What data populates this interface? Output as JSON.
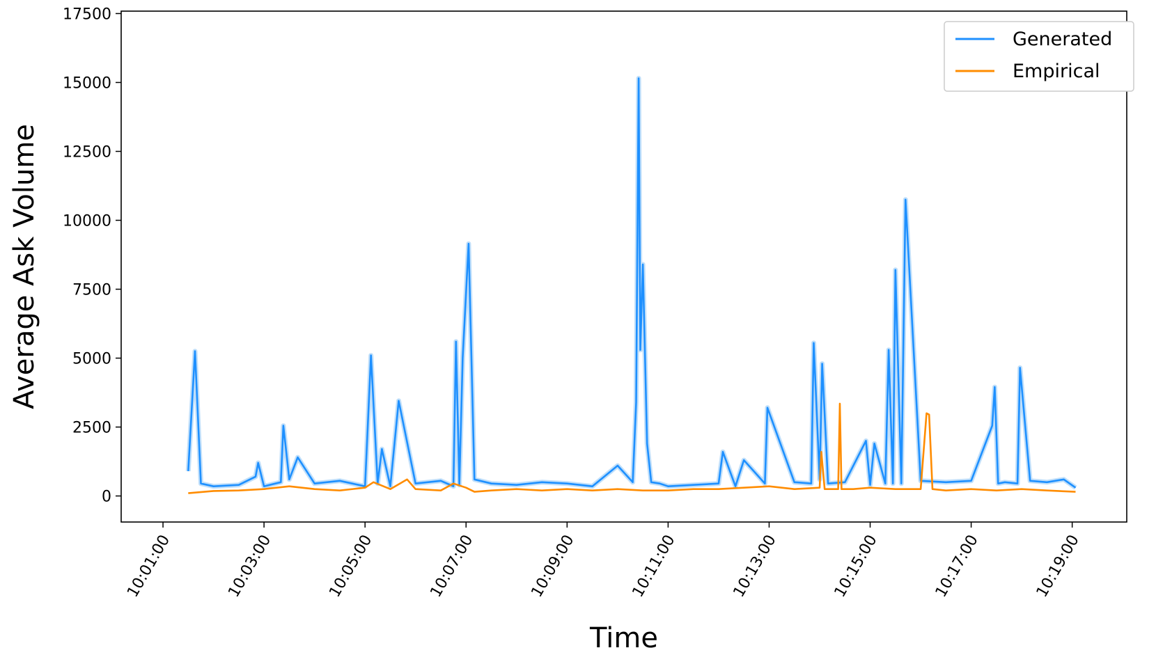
{
  "chart_data": {
    "type": "line",
    "xlabel": "Time",
    "ylabel": "Average Ask Volume",
    "xlim": [
      "10:01:00",
      "10:19:00"
    ],
    "ylim": [
      0,
      17500
    ],
    "x_ticks": [
      "10:01:00",
      "10:03:00",
      "10:05:00",
      "10:07:00",
      "10:09:00",
      "10:11:00",
      "10:13:00",
      "10:15:00",
      "10:17:00",
      "10:19:00"
    ],
    "y_ticks": [
      0,
      2500,
      5000,
      7500,
      10000,
      12500,
      15000,
      17500
    ],
    "legend_position": "top-right",
    "grid": false,
    "series": [
      {
        "name": "Generated",
        "color": "#1e90ff",
        "band_color": "#8cc4f5",
        "x": [
          "10:01:30",
          "10:01:38",
          "10:01:45",
          "10:02:00",
          "10:02:30",
          "10:02:50",
          "10:02:53",
          "10:03:00",
          "10:03:20",
          "10:03:23",
          "10:03:30",
          "10:03:40",
          "10:04:00",
          "10:04:30",
          "10:05:00",
          "10:05:07",
          "10:05:15",
          "10:05:20",
          "10:05:30",
          "10:05:40",
          "10:06:00",
          "10:06:30",
          "10:06:45",
          "10:06:48",
          "10:06:52",
          "10:06:56",
          "10:07:03",
          "10:07:10",
          "10:07:30",
          "10:08:00",
          "10:08:30",
          "10:09:00",
          "10:09:30",
          "10:10:00",
          "10:10:18",
          "10:10:22",
          "10:10:25",
          "10:10:27",
          "10:10:30",
          "10:10:35",
          "10:10:40",
          "10:10:50",
          "10:11:00",
          "10:11:30",
          "10:12:00",
          "10:12:05",
          "10:12:20",
          "10:12:30",
          "10:12:55",
          "10:12:58",
          "10:13:30",
          "10:13:50",
          "10:13:53",
          "10:14:00",
          "10:14:03",
          "10:14:10",
          "10:14:30",
          "10:14:55",
          "10:15:00",
          "10:15:05",
          "10:15:18",
          "10:15:22",
          "10:15:27",
          "10:15:30",
          "10:15:37",
          "10:15:42",
          "10:16:00",
          "10:16:30",
          "10:17:00",
          "10:17:25",
          "10:17:28",
          "10:17:32",
          "10:17:40",
          "10:17:55",
          "10:17:58",
          "10:18:10",
          "10:18:30",
          "10:18:50",
          "10:19:04"
        ],
        "values": [
          900,
          5250,
          450,
          350,
          400,
          700,
          1200,
          350,
          500,
          2550,
          600,
          1400,
          450,
          550,
          350,
          5100,
          450,
          1700,
          350,
          3450,
          450,
          550,
          350,
          5600,
          400,
          5000,
          9150,
          600,
          450,
          400,
          500,
          450,
          350,
          1100,
          500,
          3400,
          15150,
          5300,
          8400,
          1900,
          500,
          450,
          350,
          400,
          450,
          1600,
          350,
          1300,
          450,
          3200,
          500,
          450,
          5550,
          600,
          4800,
          450,
          500,
          2000,
          400,
          1900,
          450,
          5300,
          450,
          8200,
          450,
          10750,
          550,
          500,
          550,
          2550,
          3950,
          450,
          500,
          450,
          4650,
          550,
          500,
          600,
          300
        ]
      },
      {
        "name": "Empirical",
        "color": "#ff8c00",
        "x": [
          "10:01:30",
          "10:02:00",
          "10:02:30",
          "10:03:00",
          "10:03:30",
          "10:04:00",
          "10:04:30",
          "10:05:00",
          "10:05:10",
          "10:05:30",
          "10:05:50",
          "10:06:00",
          "10:06:30",
          "10:06:45",
          "10:07:00",
          "10:07:10",
          "10:07:30",
          "10:08:00",
          "10:08:30",
          "10:09:00",
          "10:09:30",
          "10:10:00",
          "10:10:30",
          "10:11:00",
          "10:11:30",
          "10:12:00",
          "10:12:30",
          "10:13:00",
          "10:13:30",
          "10:14:00",
          "10:14:02",
          "10:14:06",
          "10:14:22",
          "10:14:24",
          "10:14:26",
          "10:14:40",
          "10:15:00",
          "10:15:30",
          "10:16:00",
          "10:16:07",
          "10:16:10",
          "10:16:14",
          "10:16:30",
          "10:17:00",
          "10:17:30",
          "10:18:00",
          "10:18:30",
          "10:19:04"
        ],
        "values": [
          100,
          180,
          200,
          250,
          350,
          250,
          200,
          300,
          500,
          250,
          600,
          250,
          200,
          450,
          300,
          150,
          200,
          250,
          200,
          250,
          200,
          250,
          200,
          200,
          250,
          250,
          300,
          350,
          250,
          300,
          1600,
          250,
          250,
          3350,
          250,
          250,
          300,
          250,
          250,
          3000,
          2950,
          250,
          200,
          250,
          200,
          250,
          200,
          150
        ]
      }
    ]
  }
}
